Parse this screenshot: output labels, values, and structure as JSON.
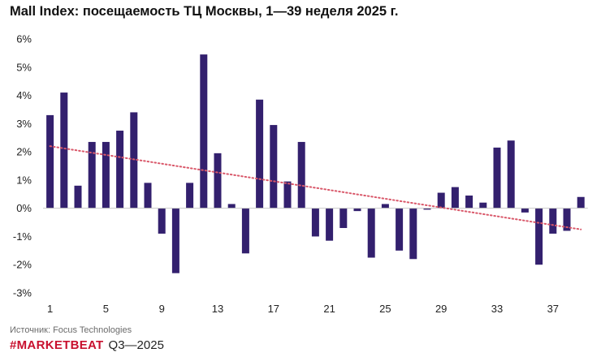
{
  "colors": {
    "bar": "#33206e",
    "trend": "#d9586a",
    "axis": "#c8c8c8",
    "brand": "#c8102e"
  },
  "footer": {
    "source": "Источник: Focus Technologies",
    "brand": "#MARKETBEAT",
    "period": "Q3—2025"
  },
  "chart_data": {
    "type": "bar",
    "title": "Mall Index: посещаемость ТЦ Москвы, 1—39 неделя 2025 г.",
    "xlabel": "",
    "ylabel": "",
    "ylim": [
      -3,
      6
    ],
    "yticks": [
      -3,
      -2,
      -1,
      0,
      1,
      2,
      3,
      4,
      5,
      6
    ],
    "ytick_labels": [
      "-3%",
      "-2%",
      "-1%",
      "0%",
      "1%",
      "2%",
      "3%",
      "4%",
      "5%",
      "6%"
    ],
    "x_tick_labels": [
      "1",
      "5",
      "9",
      "13",
      "17",
      "21",
      "25",
      "29",
      "33",
      "37"
    ],
    "categories": [
      1,
      2,
      3,
      4,
      5,
      6,
      7,
      8,
      9,
      10,
      11,
      12,
      13,
      14,
      15,
      16,
      17,
      18,
      19,
      20,
      21,
      22,
      23,
      24,
      25,
      26,
      27,
      28,
      29,
      30,
      31,
      32,
      33,
      34,
      35,
      36,
      37,
      38,
      39
    ],
    "values": [
      3.3,
      4.1,
      0.8,
      2.35,
      2.35,
      2.75,
      3.4,
      0.9,
      -0.9,
      -2.3,
      0.9,
      5.45,
      1.95,
      0.15,
      -1.6,
      3.85,
      2.95,
      0.95,
      2.35,
      -1.0,
      -1.15,
      -0.7,
      -0.1,
      -1.75,
      0.15,
      -1.5,
      -1.8,
      -0.05,
      0.55,
      0.75,
      0.45,
      0.2,
      2.15,
      2.4,
      -0.15,
      -2.0,
      -0.9,
      -0.8,
      0.4
    ],
    "trendline": {
      "type": "linear",
      "start": 2.2,
      "end": -0.75,
      "style": "dotted"
    },
    "grid": false,
    "legend": "none"
  }
}
